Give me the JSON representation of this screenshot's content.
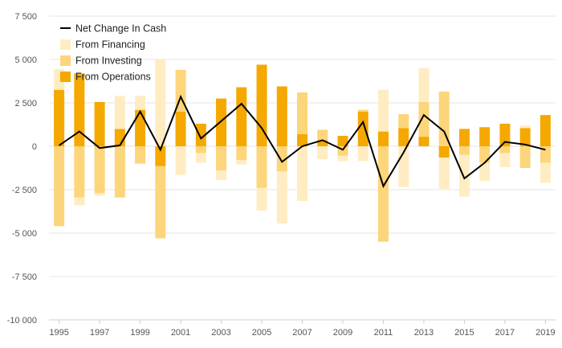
{
  "chart_data": {
    "type": "bar",
    "stacking": "diverging",
    "x": [
      1995,
      1996,
      1997,
      1998,
      1999,
      2000,
      2001,
      2002,
      2003,
      2004,
      2005,
      2006,
      2007,
      2008,
      2009,
      2010,
      2011,
      2012,
      2013,
      2014,
      2015,
      2016,
      2017,
      2018,
      2019
    ],
    "x_tick_labels": [
      "1995",
      "1997",
      "1999",
      "2001",
      "2003",
      "2005",
      "2007",
      "2009",
      "2011",
      "2013",
      "2015",
      "2017",
      "2019"
    ],
    "y_tick_labels": [
      "7 500",
      "5 000",
      "2 500",
      "0",
      "-2 500",
      "-5 000",
      "-7 500",
      "-10 000"
    ],
    "ylim": [
      -10000,
      7500
    ],
    "grid": true,
    "legend_position": "top-left",
    "series": [
      {
        "name": "From Operations",
        "kind": "bar",
        "color": "#f5a800",
        "values": [
          3250,
          4200,
          2550,
          1000,
          2100,
          -1150,
          2000,
          1300,
          2750,
          3400,
          4700,
          3450,
          700,
          350,
          600,
          2000,
          850,
          1050,
          550,
          -650,
          1000,
          1100,
          1300,
          1050,
          1800
        ]
      },
      {
        "name": "From Investing",
        "kind": "bar",
        "color": "#fdd57a",
        "values": [
          -4600,
          -2950,
          -2700,
          -2950,
          -1000,
          -4150,
          2400,
          -400,
          -1400,
          -800,
          -2400,
          -1450,
          2400,
          600,
          -550,
          100,
          -5500,
          800,
          2000,
          3150,
          -500,
          -950,
          -400,
          -1250,
          -950
        ]
      },
      {
        "name": "From Financing",
        "kind": "bar",
        "color": "#ffecc2",
        "values": [
          1200,
          -450,
          -150,
          1900,
          800,
          5000,
          -1650,
          -550,
          -550,
          -250,
          -1300,
          -3000,
          -3150,
          -750,
          -300,
          -850,
          2400,
          -2350,
          1950,
          -1800,
          -2400,
          -1050,
          -800,
          150,
          -1150
        ]
      },
      {
        "name": "Net Change In Cash",
        "kind": "line",
        "color": "#000000",
        "values": [
          50,
          850,
          -100,
          50,
          2000,
          -200,
          2850,
          450,
          1450,
          2450,
          1050,
          -900,
          0,
          350,
          -200,
          1400,
          -2300,
          -350,
          1800,
          850,
          -1850,
          -950,
          250,
          100,
          -200
        ]
      }
    ]
  }
}
